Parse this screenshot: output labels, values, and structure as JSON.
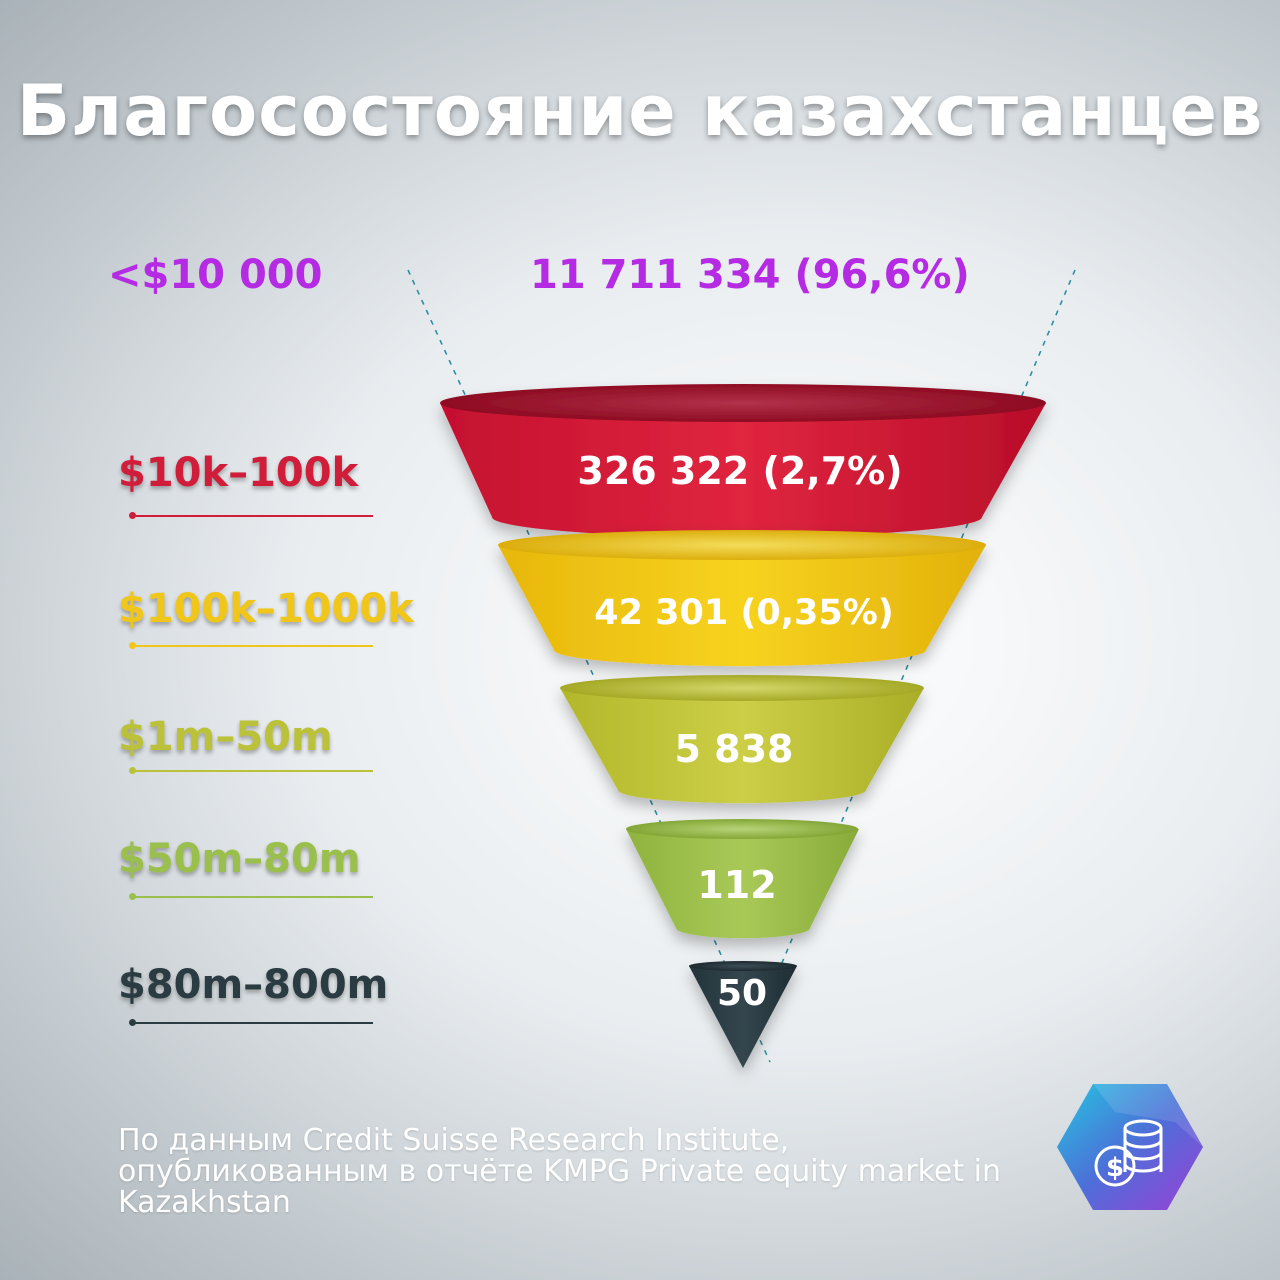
{
  "title": "Благосостояние казахстанцев",
  "source_text": "По данным Credit Suisse Research Institute, опубликованным в отчёте KMPG Private equity market in Kazakhstan",
  "colors": {
    "purple": "#b52be3",
    "red": "#d01d3a",
    "yellow": "#f0c61a",
    "olive": "#bcc13a",
    "green": "#9bbf4c",
    "dark": "#2b3b42"
  },
  "chart_data": {
    "type": "funnel",
    "title": "Благосостояние казахстанцев",
    "tiers": [
      {
        "range": "<$10 000",
        "value_label": "11 711 334 (96,6%)",
        "count": 11711334,
        "percent": 96.6,
        "color": "#b52be3"
      },
      {
        "range": "$10k–100k",
        "value_label": "326 322 (2,7%)",
        "count": 326322,
        "percent": 2.7,
        "color": "#d01d3a"
      },
      {
        "range": "$100k–1000k",
        "value_label": "42 301 (0,35%)",
        "count": 42301,
        "percent": 0.35,
        "color": "#f0c61a"
      },
      {
        "range": "$1m–50m",
        "value_label": "5 838",
        "count": 5838,
        "color": "#bcc13a"
      },
      {
        "range": "$50m–80m",
        "value_label": "112",
        "count": 112,
        "color": "#9bbf4c"
      },
      {
        "range": "$80m–800m",
        "value_label": "50",
        "count": 50,
        "color": "#2b3b42"
      }
    ]
  },
  "logo_icon": "coins-dollar-icon"
}
